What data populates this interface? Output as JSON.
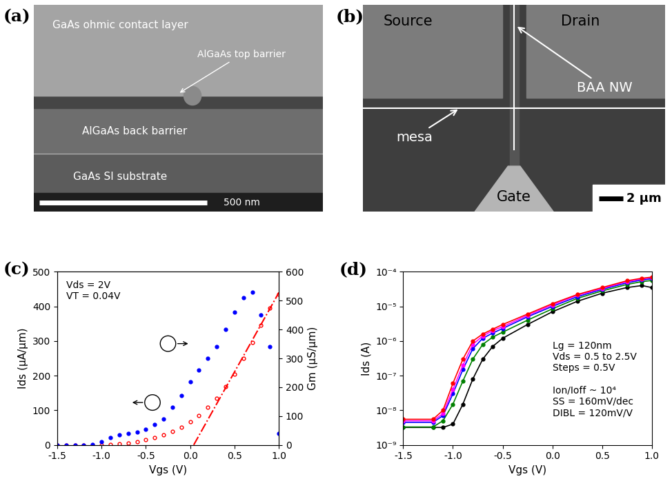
{
  "panels": {
    "a": {
      "label": "(a)",
      "layers": {
        "top": "GaAs ohmic contact layer",
        "top_barrier": "AlGaAs top barrier",
        "back_barrier": "AlGaAs back barrier",
        "substrate": "GaAs SI substrate"
      },
      "scale_bar": "500 nm"
    },
    "b": {
      "label": "(b)",
      "source": "Source",
      "drain": "Drain",
      "gate": "Gate",
      "nanowire": "BAA NW",
      "mesa": "mesa",
      "scale_bar": "2 µm"
    }
  },
  "chart_data": [
    {
      "type": "line",
      "title": "(c)",
      "x_label": "Vgs (V)",
      "y_label": "Ids (µA/µm)",
      "y2_label": "Gm (µS/µm)",
      "annotations": [
        "Vds = 2V",
        "VT = 0.04V"
      ],
      "xlim": [
        -1.5,
        1.0
      ],
      "xticks": [
        {
          "value": -1.5,
          "label": "-1.5"
        },
        {
          "value": -1.0,
          "label": "-1.0"
        },
        {
          "value": -0.5,
          "label": "-0.5"
        },
        {
          "value": 0.0,
          "label": "0.0"
        },
        {
          "value": 0.5,
          "label": "0.5"
        },
        {
          "value": 1.0,
          "label": "1.0"
        }
      ],
      "ylim": [
        0,
        500
      ],
      "yticks": [
        0,
        100,
        200,
        300,
        400,
        500
      ],
      "y2lim": [
        0,
        600
      ],
      "y2ticks": [
        0,
        100,
        200,
        300,
        400,
        500,
        600
      ],
      "series": [
        {
          "type": "scatter",
          "axis": "y",
          "color": "#ff0000",
          "marker": "open circle",
          "line_style": "none",
          "x": [
            -1.5,
            -1.4,
            -1.3,
            -1.2,
            -1.1,
            -1.0,
            -0.9,
            -0.8,
            -0.7,
            -0.6,
            -0.5,
            -0.4,
            -0.3,
            -0.2,
            -0.1,
            0.0,
            0.1,
            0.2,
            0.3,
            0.4,
            0.5,
            0.6,
            0.7,
            0.8,
            0.9,
            1.0
          ],
          "values": [
            0,
            0,
            0,
            0,
            0,
            0,
            1,
            3,
            6,
            10,
            15,
            22,
            30,
            40,
            52,
            67,
            85,
            108,
            135,
            168,
            205,
            250,
            295,
            345,
            395,
            435
          ]
        },
        {
          "type": "line",
          "axis": "y",
          "color": "#ff0000",
          "marker": "none",
          "line_style": "dashdot",
          "x": [
            0.04,
            1.0
          ],
          "values": [
            0,
            440
          ]
        },
        {
          "type": "scatter",
          "axis": "y2",
          "color": "#0000ff",
          "marker": "circle",
          "line_style": "none",
          "x": [
            -1.5,
            -1.4,
            -1.3,
            -1.2,
            -1.1,
            -1.0,
            -0.9,
            -0.8,
            -0.7,
            -0.6,
            -0.5,
            -0.4,
            -0.3,
            -0.2,
            -0.1,
            0.0,
            0.1,
            0.2,
            0.3,
            0.4,
            0.5,
            0.6,
            0.7,
            0.8,
            0.9,
            1.0
          ],
          "values": [
            0,
            0,
            0,
            0,
            2,
            10,
            25,
            35,
            40,
            45,
            55,
            70,
            90,
            130,
            170,
            220,
            260,
            300,
            340,
            400,
            460,
            510,
            530,
            450,
            340,
            40
          ]
        }
      ]
    },
    {
      "type": "line",
      "title": "(d)",
      "x_label": "Vgs (V)",
      "y_label": "Ids (A)",
      "log": "y",
      "annotations": [
        "Lg = 120nm",
        "Vds = 0.5 to 2.5V",
        "Steps = 0.5V",
        "",
        "Ion/Ioff ~ 10⁴",
        "SS = 160mV/dec",
        "DIBL = 120mV/V"
      ],
      "xlim": [
        -1.5,
        1.0
      ],
      "xticks": [
        {
          "value": -1.5,
          "label": "-1.5"
        },
        {
          "value": -1.0,
          "label": "-1.0"
        },
        {
          "value": -0.5,
          "label": "-0.5"
        },
        {
          "value": 0.0,
          "label": "0.0"
        },
        {
          "value": 0.5,
          "label": "0.5"
        },
        {
          "value": 1.0,
          "label": "1.0"
        }
      ],
      "ylim": [
        1e-09,
        0.0001
      ],
      "yticks": [
        {
          "value": 1e-09,
          "label": "10⁻⁹"
        },
        {
          "value": 1e-08,
          "label": "10⁻⁸"
        },
        {
          "value": 1e-07,
          "label": "10⁻⁷"
        },
        {
          "value": 1e-06,
          "label": "10⁻⁶"
        },
        {
          "value": 1e-05,
          "label": "10⁻⁵"
        },
        {
          "value": 0.0001,
          "label": "10⁻⁴"
        }
      ],
      "x": [
        -1.5,
        -1.2,
        -1.1,
        -1.0,
        -0.9,
        -0.8,
        -0.7,
        -0.6,
        -0.5,
        -0.25,
        0.0,
        0.25,
        0.5,
        0.75,
        0.9,
        1.0
      ],
      "marker": "circle",
      "line_style": "solid",
      "series": [
        {
          "color": "#000000",
          "values": [
            3.2e-09,
            3.2e-09,
            3.2e-09,
            4e-09,
            1.5e-08,
            8e-08,
            3e-07,
            7e-07,
            1.2e-06,
            3e-06,
            7e-06,
            1.4e-05,
            2.4e-05,
            3.5e-05,
            4e-05,
            3.5e-05
          ]
        },
        {
          "color": "#008000",
          "values": [
            3.3e-09,
            3.3e-09,
            5e-09,
            1.5e-08,
            7e-08,
            3e-07,
            8e-07,
            1.3e-06,
            1.8e-06,
            4e-06,
            8.5e-06,
            1.7e-05,
            2.8e-05,
            4.3e-05,
            5.2e-05,
            5.6e-05
          ]
        },
        {
          "color": "#0000ff",
          "values": [
            4.5e-09,
            4.5e-09,
            7e-09,
            3e-08,
            1.5e-07,
            6e-07,
            1.2e-06,
            1.7e-06,
            2.3e-06,
            5e-06,
            1e-05,
            1.9e-05,
            3.1e-05,
            4.8e-05,
            5.8e-05,
            6.3e-05
          ]
        },
        {
          "color": "#ff00ff",
          "values": [
            5e-09,
            5e-09,
            8e-09,
            4e-08,
            2e-07,
            8e-07,
            1.4e-06,
            2e-06,
            2.6e-06,
            5.5e-06,
            1.1e-05,
            2.1e-05,
            3.3e-05,
            5.2e-05,
            6.2e-05,
            6.8e-05
          ]
        },
        {
          "color": "#ff0000",
          "values": [
            5.5e-09,
            5.5e-09,
            1e-08,
            6e-08,
            3e-07,
            1e-06,
            1.6e-06,
            2.2e-06,
            3e-06,
            6e-06,
            1.2e-05,
            2.2e-05,
            3.5e-05,
            5.5e-05,
            6.5e-05,
            7e-05
          ]
        }
      ]
    }
  ]
}
